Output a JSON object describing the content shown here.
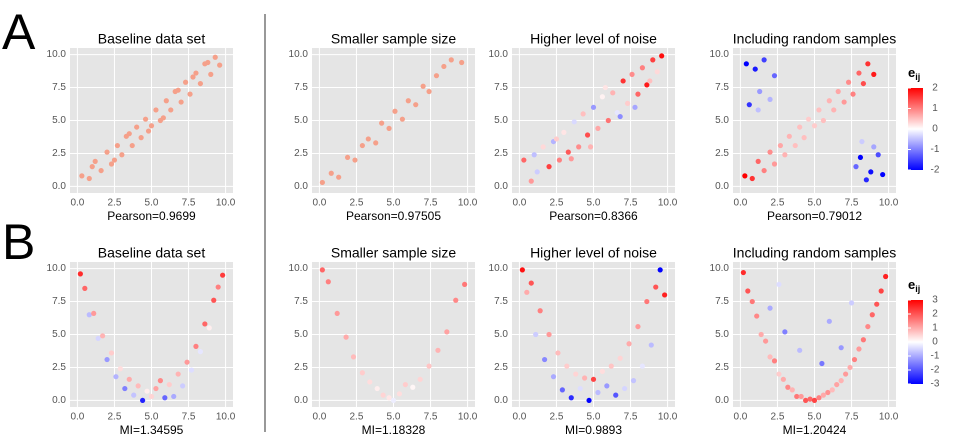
{
  "panel_labels": [
    "A",
    "B"
  ],
  "colorbars": [
    {
      "title": "e",
      "subscript": "ij",
      "lim": [
        -2,
        2
      ],
      "ticks": [
        2,
        1,
        0,
        -1,
        -2
      ],
      "colors": [
        "#0000ff",
        "#ffffff",
        "#ff0000"
      ]
    },
    {
      "title": "e",
      "subscript": "ij",
      "lim": [
        -3,
        3
      ],
      "ticks": [
        3,
        2,
        1,
        0,
        -1,
        -2,
        -3
      ],
      "colors": [
        "#0000ff",
        "#ffffff",
        "#ff0000"
      ]
    }
  ],
  "chart_data": [
    {
      "type": "scatter",
      "title": "Baseline data set",
      "xlabel": "Pearson=0.9699",
      "color": "#f5a08a",
      "xlim": [
        -0.5,
        10.5
      ],
      "ylim": [
        -0.5,
        10.5
      ],
      "xticks": [
        {
          "value": 0,
          "label": "0.0"
        },
        2.5,
        {
          "value": 5,
          "label": "5.0"
        },
        7.5,
        {
          "value": 10,
          "label": "10.0"
        }
      ],
      "yticks": [
        {
          "value": 0,
          "label": "0.0"
        },
        2.5,
        {
          "value": 5,
          "label": "5.0"
        },
        7.5,
        {
          "value": 10,
          "label": "10.0"
        }
      ],
      "x": [
        0.3,
        0.8,
        1.2,
        1.6,
        2.0,
        2.3,
        2.7,
        3.0,
        3.3,
        3.7,
        4.0,
        4.3,
        4.6,
        5.0,
        5.3,
        5.6,
        6.0,
        6.3,
        6.6,
        7.0,
        7.3,
        7.6,
        8.0,
        8.3,
        8.6,
        9.0,
        9.3,
        9.6,
        1.0,
        3.5,
        5.8,
        7.8,
        4.8,
        2.5,
        6.8,
        8.8
      ],
      "y": [
        0.8,
        0.6,
        1.9,
        1.2,
        2.6,
        1.7,
        3.1,
        2.4,
        3.8,
        3.1,
        4.5,
        3.7,
        5.1,
        4.6,
        5.8,
        5.0,
        6.5,
        5.8,
        7.2,
        6.4,
        7.9,
        7.0,
        8.6,
        7.8,
        9.3,
        8.5,
        9.8,
        9.2,
        1.5,
        4.0,
        5.2,
        8.3,
        4.2,
        2.0,
        7.3,
        9.4
      ]
    },
    {
      "type": "scatter",
      "title": "Smaller sample size",
      "xlabel": "Pearson=0.97505",
      "color": "#f5a08a",
      "xlim": [
        -0.5,
        10.5
      ],
      "ylim": [
        -0.5,
        10.5
      ],
      "xticks": [
        {
          "value": 0,
          "label": "0.0"
        },
        2.5,
        {
          "value": 5,
          "label": "5.0"
        },
        7.5,
        {
          "value": 10,
          "label": "10.0"
        }
      ],
      "yticks": [
        {
          "value": 0,
          "label": "0.0"
        },
        2.5,
        {
          "value": 5,
          "label": "5.0"
        },
        7.5,
        {
          "value": 10,
          "label": "10.0"
        }
      ],
      "x": [
        0.2,
        0.8,
        1.3,
        1.9,
        2.4,
        2.9,
        3.3,
        3.8,
        4.2,
        4.7,
        5.1,
        5.6,
        6.0,
        6.5,
        7.0,
        7.4,
        7.9,
        8.4,
        8.9,
        9.6
      ],
      "y": [
        0.3,
        1.0,
        0.7,
        2.2,
        2.0,
        3.1,
        3.6,
        3.3,
        4.8,
        4.4,
        5.7,
        5.1,
        6.5,
        6.2,
        7.6,
        7.2,
        8.4,
        9.1,
        9.6,
        9.4
      ]
    },
    {
      "type": "scatter",
      "title": "Higher level of noise",
      "xlabel": "Pearson=0.8366",
      "xlim": [
        -0.5,
        10.5
      ],
      "ylim": [
        -0.5,
        10.5
      ],
      "xticks": [
        {
          "value": 0,
          "label": "0.0"
        },
        2.5,
        {
          "value": 5,
          "label": "5.0"
        },
        7.5,
        {
          "value": 10,
          "label": "10.0"
        }
      ],
      "yticks": [
        {
          "value": 0,
          "label": "0.0"
        },
        2.5,
        {
          "value": 5,
          "label": "5.0"
        },
        7.5,
        {
          "value": 10,
          "label": "10.0"
        }
      ],
      "x": [
        0.3,
        0.8,
        1.2,
        1.6,
        2.0,
        2.3,
        2.7,
        3.0,
        3.3,
        3.7,
        4.0,
        4.3,
        4.6,
        5.0,
        5.3,
        5.6,
        6.0,
        6.3,
        6.6,
        7.0,
        7.3,
        7.6,
        8.0,
        8.3,
        8.6,
        9.0,
        9.3,
        9.6,
        1.0,
        3.5,
        5.8,
        7.8,
        4.8,
        2.5,
        6.8,
        8.8
      ],
      "y": [
        2.0,
        0.4,
        1.1,
        3.0,
        1.5,
        3.4,
        2.0,
        4.1,
        2.6,
        4.9,
        3.0,
        5.5,
        3.9,
        6.0,
        4.4,
        6.8,
        5.0,
        7.1,
        5.6,
        8.0,
        6.3,
        8.5,
        7.0,
        9.0,
        7.7,
        9.6,
        8.7,
        9.9,
        2.4,
        2.1,
        7.5,
        6.0,
        3.0,
        3.6,
        5.3,
        8.0
      ],
      "e": [
        1.2,
        0.8,
        -0.4,
        0.3,
        1.5,
        -0.6,
        1.0,
        0.2,
        1.3,
        -0.3,
        0.9,
        0.5,
        1.4,
        -0.8,
        0.7,
        0.1,
        1.1,
        0.6,
        -0.2,
        1.6,
        0.4,
        0.9,
        1.2,
        1.0,
        1.8,
        1.5,
        0.3,
        1.9,
        -0.5,
        0.8,
        0.2,
        -0.7,
        0.6,
        0.4,
        -0.9,
        0.5
      ]
    },
    {
      "type": "scatter",
      "title": "Including random samples",
      "xlabel": "Pearson=0.79012",
      "xlim": [
        -0.5,
        10.5
      ],
      "ylim": [
        -0.5,
        10.5
      ],
      "xticks": [
        {
          "value": 0,
          "label": "0.0"
        },
        2.5,
        {
          "value": 5,
          "label": "5.0"
        },
        7.5,
        {
          "value": 10,
          "label": "10.0"
        }
      ],
      "yticks": [
        {
          "value": 0,
          "label": "0.0"
        },
        2.5,
        {
          "value": 5,
          "label": "5.0"
        },
        7.5,
        {
          "value": 10,
          "label": "10.0"
        }
      ],
      "x": [
        0.3,
        0.8,
        1.2,
        1.6,
        2.0,
        2.3,
        2.7,
        3.0,
        3.3,
        3.7,
        4.0,
        4.3,
        4.6,
        5.0,
        5.3,
        5.6,
        6.0,
        6.3,
        6.6,
        7.0,
        7.3,
        7.6,
        8.0,
        8.3,
        8.6,
        9.0,
        0.4,
        1.0,
        1.6,
        2.3,
        1.3,
        0.6,
        2.0,
        1.2,
        8.1,
        8.8,
        9.3,
        8.5,
        9.6,
        7.8,
        9.0,
        8.2
      ],
      "y": [
        0.8,
        0.6,
        1.9,
        1.2,
        2.6,
        1.7,
        3.1,
        2.4,
        3.8,
        3.1,
        4.5,
        3.7,
        5.1,
        4.6,
        5.8,
        5.0,
        6.5,
        5.8,
        7.2,
        6.4,
        7.9,
        7.0,
        8.6,
        7.8,
        9.3,
        8.5,
        9.3,
        8.9,
        9.6,
        8.4,
        7.2,
        6.2,
        6.6,
        5.8,
        2.2,
        1.1,
        2.4,
        0.5,
        0.9,
        1.5,
        3.0,
        3.4
      ],
      "e": [
        2.0,
        1.6,
        1.2,
        1.0,
        0.9,
        0.8,
        0.7,
        0.6,
        0.6,
        0.5,
        0.5,
        0.5,
        0.4,
        0.4,
        0.5,
        0.5,
        0.6,
        0.6,
        0.7,
        0.8,
        0.9,
        1.0,
        1.2,
        1.4,
        1.6,
        1.8,
        -2.0,
        -1.8,
        -1.5,
        -1.2,
        -0.8,
        -1.6,
        -0.6,
        -0.5,
        -2.0,
        -1.9,
        -1.4,
        -1.7,
        -2.0,
        -1.2,
        -0.7,
        -0.4
      ]
    },
    {
      "type": "scatter",
      "title": "Baseline data set",
      "xlabel": "MI=1.34595",
      "xlim": [
        -0.5,
        10.5
      ],
      "ylim": [
        -0.5,
        10.5
      ],
      "xticks": [
        {
          "value": 0,
          "label": "0.0"
        },
        2.5,
        {
          "value": 5,
          "label": "5.0"
        },
        7.5,
        {
          "value": 10,
          "label": "10.0"
        }
      ],
      "yticks": [
        {
          "value": 0,
          "label": "0.0"
        },
        2.5,
        {
          "value": 5,
          "label": "5.0"
        },
        7.5,
        {
          "value": 10,
          "label": "10.0"
        }
      ],
      "x": [
        0.2,
        0.5,
        0.8,
        1.1,
        1.4,
        1.7,
        2.0,
        2.3,
        2.6,
        2.9,
        3.2,
        3.5,
        3.8,
        4.1,
        4.4,
        4.7,
        5.0,
        5.3,
        5.6,
        5.9,
        6.2,
        6.5,
        6.8,
        7.1,
        7.4,
        7.7,
        8.0,
        8.3,
        8.6,
        8.9,
        9.2,
        9.5,
        9.8
      ],
      "y": [
        9.6,
        8.5,
        6.5,
        6.6,
        4.7,
        4.9,
        3.1,
        3.6,
        1.8,
        2.4,
        0.9,
        1.6,
        0.4,
        1.1,
        0.0,
        0.7,
        0.3,
        0.9,
        1.5,
        0.2,
        1.2,
        0.3,
        2.0,
        1.1,
        2.9,
        2.3,
        4.1,
        3.7,
        5.8,
        5.5,
        7.6,
        8.6,
        9.5
      ],
      "e": [
        2.5,
        1.8,
        -0.8,
        1.2,
        -0.5,
        0.9,
        -1.2,
        0.6,
        -0.9,
        0.4,
        -1.5,
        1.0,
        -0.7,
        0.8,
        -2.6,
        0.2,
        0.5,
        1.1,
        1.4,
        -1.8,
        0.6,
        -1.0,
        0.9,
        -0.6,
        1.2,
        -0.4,
        1.5,
        -0.3,
        1.8,
        0.2,
        2.0,
        1.5,
        2.3
      ]
    },
    {
      "type": "scatter",
      "title": "Smaller sample size",
      "xlabel": "MI=1.18328",
      "xlim": [
        -0.5,
        10.5
      ],
      "ylim": [
        -0.5,
        10.5
      ],
      "xticks": [
        {
          "value": 0,
          "label": "0.0"
        },
        2.5,
        {
          "value": 5,
          "label": "5.0"
        },
        7.5,
        {
          "value": 10,
          "label": "10.0"
        }
      ],
      "yticks": [
        {
          "value": 0,
          "label": "0.0"
        },
        2.5,
        {
          "value": 5,
          "label": "5.0"
        },
        7.5,
        {
          "value": 10,
          "label": "10.0"
        }
      ],
      "x": [
        0.2,
        0.6,
        1.2,
        1.8,
        2.3,
        2.9,
        3.4,
        3.9,
        4.3,
        4.7,
        5.0,
        5.4,
        5.8,
        6.3,
        6.8,
        7.4,
        8.0,
        8.6,
        9.2,
        9.8
      ],
      "y": [
        9.9,
        9.0,
        6.6,
        4.8,
        3.3,
        2.1,
        1.4,
        0.9,
        0.4,
        0.2,
        0.0,
        0.5,
        1.2,
        1.0,
        1.6,
        2.6,
        3.8,
        5.2,
        7.6,
        8.8
      ],
      "e": [
        1.8,
        1.5,
        1.2,
        1.0,
        0.8,
        0.6,
        0.4,
        0.2,
        0.5,
        0.3,
        -0.2,
        0.4,
        0.6,
        0.1,
        0.5,
        0.7,
        0.9,
        1.1,
        1.4,
        1.6
      ]
    },
    {
      "type": "scatter",
      "title": "Higher level of noise",
      "xlabel": "MI=0.9893",
      "xlim": [
        -0.5,
        10.5
      ],
      "ylim": [
        -0.5,
        10.5
      ],
      "xticks": [
        {
          "value": 0,
          "label": "0.0"
        },
        2.5,
        {
          "value": 5,
          "label": "5.0"
        },
        7.5,
        {
          "value": 10,
          "label": "10.0"
        }
      ],
      "yticks": [
        {
          "value": 0,
          "label": "0.0"
        },
        2.5,
        {
          "value": 5,
          "label": "5.0"
        },
        7.5,
        {
          "value": 10,
          "label": "10.0"
        }
      ],
      "x": [
        0.2,
        0.5,
        0.8,
        1.1,
        1.4,
        1.7,
        2.0,
        2.3,
        2.6,
        2.9,
        3.2,
        3.5,
        3.8,
        4.1,
        4.4,
        4.7,
        5.0,
        5.3,
        5.6,
        5.9,
        6.2,
        6.5,
        6.8,
        7.1,
        7.4,
        7.7,
        8.0,
        8.3,
        8.6,
        8.9,
        9.2,
        9.5,
        9.8
      ],
      "y": [
        9.9,
        8.2,
        8.9,
        5.0,
        6.8,
        3.1,
        5.0,
        1.8,
        3.6,
        0.8,
        2.6,
        0.2,
        2.0,
        0.9,
        1.7,
        0.0,
        1.6,
        0.6,
        2.2,
        1.1,
        2.6,
        0.4,
        3.2,
        0.9,
        4.3,
        1.5,
        5.6,
        2.6,
        7.5,
        4.2,
        8.6,
        9.9,
        8.0
      ],
      "e": [
        2.8,
        1.0,
        2.0,
        -0.6,
        1.5,
        -1.4,
        1.2,
        -1.0,
        0.8,
        -1.8,
        0.6,
        -2.5,
        0.5,
        -0.4,
        0.9,
        -3.0,
        2.2,
        -0.8,
        0.4,
        -1.2,
        0.7,
        -2.0,
        0.5,
        -0.5,
        1.0,
        -0.7,
        1.2,
        -0.3,
        1.6,
        -0.8,
        2.0,
        -3.0,
        2.6
      ]
    },
    {
      "type": "scatter",
      "title": "Including random samples",
      "xlabel": "MI=1.20424",
      "xlim": [
        -0.5,
        10.5
      ],
      "ylim": [
        -0.5,
        10.5
      ],
      "xticks": [
        {
          "value": 0,
          "label": "0.0"
        },
        2.5,
        {
          "value": 5,
          "label": "5.0"
        },
        7.5,
        {
          "value": 10,
          "label": "10.0"
        }
      ],
      "yticks": [
        {
          "value": 0,
          "label": "0.0"
        },
        2.5,
        {
          "value": 5,
          "label": "5.0"
        },
        7.5,
        {
          "value": 10,
          "label": "10.0"
        }
      ],
      "x": [
        0.2,
        0.5,
        0.8,
        1.1,
        1.4,
        1.7,
        2.0,
        2.3,
        2.6,
        2.9,
        3.2,
        3.5,
        3.8,
        4.1,
        4.4,
        4.7,
        5.0,
        5.3,
        5.6,
        5.9,
        6.2,
        6.5,
        6.8,
        7.1,
        7.4,
        7.7,
        8.0,
        8.3,
        8.6,
        8.9,
        9.2,
        9.5,
        9.8,
        2.0,
        3.0,
        6.0,
        7.5,
        4.0,
        6.8,
        2.6,
        5.5
      ],
      "y": [
        9.7,
        8.3,
        7.5,
        6.4,
        5.0,
        4.5,
        3.3,
        3.0,
        2.0,
        1.6,
        1.0,
        0.8,
        0.3,
        0.3,
        0.0,
        0.1,
        0.0,
        0.2,
        0.4,
        0.6,
        0.8,
        1.2,
        1.5,
        2.0,
        2.5,
        3.1,
        3.9,
        4.6,
        5.6,
        6.5,
        7.3,
        8.3,
        9.4,
        7.0,
        5.2,
        6.0,
        7.4,
        3.8,
        4.0,
        8.8,
        2.8
      ],
      "e": [
        2.5,
        2.0,
        1.6,
        1.4,
        1.0,
        1.2,
        0.8,
        1.5,
        0.6,
        1.0,
        1.4,
        0.9,
        1.6,
        1.2,
        2.0,
        1.8,
        2.2,
        1.5,
        1.0,
        1.3,
        0.8,
        1.1,
        0.9,
        1.2,
        1.0,
        1.5,
        1.2,
        1.6,
        1.4,
        1.8,
        2.0,
        2.2,
        2.6,
        -1.0,
        -1.5,
        -1.0,
        -0.6,
        -0.8,
        -1.2,
        -0.4,
        -1.6
      ]
    }
  ]
}
